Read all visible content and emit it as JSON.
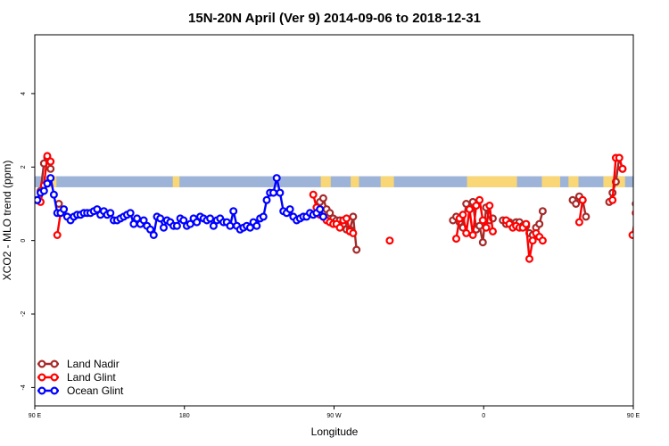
{
  "chart_data": {
    "type": "line",
    "title": "15N-20N April (Ver 9)   2014-09-06 to 2018-12-31",
    "xlabel": "Longitude",
    "ylabel": "XCO2 - MLO trend (ppm)",
    "xlim": [
      90,
      450
    ],
    "ylim": [
      -4.5,
      5.6
    ],
    "x_ticks": [
      {
        "value": 90,
        "label": "90 E"
      },
      {
        "value": 180,
        "label": "180"
      },
      {
        "value": 270,
        "label": "90 W"
      },
      {
        "value": 360,
        "label": "0"
      },
      {
        "value": 450,
        "label": "90 E"
      },
      {
        "value": 540,
        "label": "180"
      }
    ],
    "y_ticks": [
      {
        "value": -4,
        "label": "-4"
      },
      {
        "value": -2,
        "label": "-2"
      },
      {
        "value": 0,
        "label": "0"
      },
      {
        "value": 2,
        "label": "2"
      },
      {
        "value": 4,
        "label": "4"
      }
    ],
    "land_band": {
      "ymin": 1.45,
      "ymax": 1.75,
      "ocean_color": "#9db4d8",
      "land_color": "#f9d776"
    },
    "legend_position": "bottom-left",
    "series": [
      {
        "name": "Land Nadir",
        "color": "#a52a2a",
        "segments": [
          [
            [
              91.5,
              1.1
            ],
            [
              93.5,
              1.35
            ],
            [
              95.5,
              2.1
            ],
            [
              97.5,
              2.25
            ],
            [
              99.5,
              1.95
            ]
          ],
          [
            [
              104.5,
              1.0
            ]
          ],
          [
            [
              261.5,
              1.05
            ],
            [
              263.5,
              1.15
            ],
            [
              265.5,
              0.85
            ],
            [
              267.5,
              0.75
            ],
            [
              269.5,
              0.6
            ],
            [
              271.5,
              0.55
            ],
            [
              273.5,
              0.55
            ],
            [
              275.5,
              0.45
            ],
            [
              277.5,
              0.3
            ],
            [
              279.5,
              0.3
            ],
            [
              281.5,
              0.65
            ],
            [
              283.5,
              -0.25
            ]
          ],
          [
            [
              341.5,
              0.55
            ],
            [
              343.5,
              0.65
            ],
            [
              345.5,
              0.5
            ],
            [
              347.5,
              0.35
            ],
            [
              349.5,
              1.0
            ],
            [
              351.5,
              0.85
            ],
            [
              353.5,
              1.05
            ],
            [
              355.5,
              0.3
            ],
            [
              357.5,
              0.4
            ],
            [
              359.5,
              -0.05
            ],
            [
              361.5,
              0.9
            ],
            [
              363.5,
              0.55
            ],
            [
              365.5,
              0.6
            ]
          ],
          [
            [
              371.5,
              0.55
            ],
            [
              373.5,
              0.45
            ],
            [
              375.5,
              0.5
            ],
            [
              377.5,
              0.45
            ],
            [
              379.5,
              0.5
            ],
            [
              381.5,
              0.5
            ],
            [
              383.5,
              0.4
            ],
            [
              385.5,
              0.4
            ],
            [
              387.5,
              0.2
            ],
            [
              389.5,
              0.15
            ],
            [
              391.5,
              0.35
            ],
            [
              393.5,
              0.45
            ],
            [
              395.5,
              0.8
            ]
          ],
          [
            [
              413.5,
              1.1
            ],
            [
              415.5,
              1.0
            ],
            [
              417.5,
              1.2
            ],
            [
              419.5,
              1.1
            ],
            [
              421.5,
              0.65
            ]
          ],
          [
            [
              435.5,
              1.05
            ],
            [
              437.5,
              1.3
            ],
            [
              439.5,
              1.6
            ],
            [
              441.5,
              2.25
            ],
            [
              443.5,
              1.95
            ]
          ],
          [
            [
              451.5,
              1.0
            ]
          ]
        ]
      },
      {
        "name": "Land Glint",
        "color": "#ff0000",
        "segments": [
          [
            [
              93.5,
              1.05
            ],
            [
              95.5,
              1.5
            ],
            [
              97.5,
              2.3
            ],
            [
              99.5,
              2.15
            ]
          ],
          [
            [
              103.5,
              0.15
            ],
            [
              105.5,
              0.75
            ]
          ],
          [
            [
              257.5,
              1.25
            ],
            [
              259.5,
              0.9
            ],
            [
              261.5,
              0.7
            ],
            [
              263.5,
              0.65
            ],
            [
              265.5,
              0.55
            ],
            [
              267.5,
              0.5
            ],
            [
              269.5,
              0.45
            ],
            [
              271.5,
              0.45
            ],
            [
              273.5,
              0.35
            ],
            [
              275.5,
              0.55
            ],
            [
              277.5,
              0.6
            ],
            [
              279.5,
              0.25
            ],
            [
              281.5,
              0.2
            ]
          ],
          [
            [
              303.5,
              0.0
            ]
          ],
          [
            [
              343.5,
              0.05
            ],
            [
              345.5,
              0.6
            ],
            [
              347.5,
              0.7
            ],
            [
              349.5,
              0.2
            ],
            [
              351.5,
              0.85
            ],
            [
              353.5,
              0.15
            ],
            [
              355.5,
              0.95
            ],
            [
              357.5,
              1.1
            ],
            [
              359.5,
              0.55
            ],
            [
              361.5,
              0.35
            ],
            [
              363.5,
              0.95
            ],
            [
              365.5,
              0.25
            ]
          ],
          [
            [
              373.5,
              0.55
            ],
            [
              375.5,
              0.45
            ],
            [
              377.5,
              0.35
            ],
            [
              379.5,
              0.4
            ],
            [
              381.5,
              0.35
            ],
            [
              383.5,
              0.35
            ],
            [
              385.5,
              0.45
            ],
            [
              387.5,
              -0.5
            ],
            [
              389.5,
              0.0
            ],
            [
              391.5,
              0.2
            ],
            [
              393.5,
              0.1
            ],
            [
              395.5,
              0.0
            ]
          ],
          [
            [
              417.5,
              0.5
            ],
            [
              419.5,
              1.1
            ]
          ],
          [
            [
              437.5,
              1.1
            ],
            [
              439.5,
              2.25
            ],
            [
              441.5,
              2.25
            ],
            [
              443.5,
              1.95
            ]
          ],
          [
            [
              449.5,
              0.15
            ],
            [
              451.5,
              0.75
            ]
          ]
        ]
      },
      {
        "name": "Ocean Glint",
        "color": "#0000ff",
        "segments": [
          [
            [
              91.5,
              1.1
            ],
            [
              93.5,
              1.3
            ],
            [
              95.5,
              1.35
            ],
            [
              97.5,
              1.55
            ],
            [
              99.5,
              1.7
            ],
            [
              101.5,
              1.25
            ],
            [
              103.5,
              0.75
            ],
            [
              105.5,
              0.75
            ],
            [
              107.5,
              0.85
            ],
            [
              109.5,
              0.65
            ],
            [
              111.5,
              0.55
            ],
            [
              113.5,
              0.65
            ],
            [
              115.5,
              0.7
            ],
            [
              117.5,
              0.7
            ],
            [
              119.5,
              0.75
            ],
            [
              121.5,
              0.75
            ],
            [
              123.5,
              0.75
            ],
            [
              125.5,
              0.8
            ],
            [
              127.5,
              0.85
            ],
            [
              129.5,
              0.7
            ],
            [
              131.5,
              0.8
            ],
            [
              133.5,
              0.7
            ],
            [
              135.5,
              0.75
            ],
            [
              137.5,
              0.55
            ],
            [
              139.5,
              0.55
            ],
            [
              141.5,
              0.6
            ],
            [
              143.5,
              0.65
            ],
            [
              145.5,
              0.7
            ],
            [
              147.5,
              0.75
            ],
            [
              149.5,
              0.45
            ],
            [
              151.5,
              0.6
            ],
            [
              153.5,
              0.45
            ],
            [
              155.5,
              0.55
            ],
            [
              157.5,
              0.4
            ],
            [
              159.5,
              0.3
            ],
            [
              161.5,
              0.15
            ],
            [
              163.5,
              0.65
            ],
            [
              165.5,
              0.6
            ],
            [
              167.5,
              0.35
            ],
            [
              169.5,
              0.55
            ],
            [
              171.5,
              0.5
            ],
            [
              173.5,
              0.4
            ],
            [
              175.5,
              0.4
            ],
            [
              177.5,
              0.6
            ],
            [
              179.5,
              0.55
            ],
            [
              181.5,
              0.4
            ],
            [
              183.5,
              0.45
            ],
            [
              185.5,
              0.6
            ],
            [
              187.5,
              0.5
            ],
            [
              189.5,
              0.65
            ],
            [
              191.5,
              0.6
            ],
            [
              193.5,
              0.55
            ],
            [
              195.5,
              0.6
            ],
            [
              197.5,
              0.4
            ],
            [
              199.5,
              0.55
            ],
            [
              201.5,
              0.6
            ],
            [
              203.5,
              0.5
            ],
            [
              205.5,
              0.5
            ],
            [
              207.5,
              0.4
            ],
            [
              209.5,
              0.8
            ],
            [
              211.5,
              0.4
            ],
            [
              213.5,
              0.3
            ],
            [
              215.5,
              0.35
            ],
            [
              217.5,
              0.4
            ],
            [
              219.5,
              0.35
            ],
            [
              221.5,
              0.5
            ],
            [
              223.5,
              0.4
            ],
            [
              225.5,
              0.6
            ],
            [
              227.5,
              0.65
            ],
            [
              229.5,
              1.1
            ],
            [
              231.5,
              1.3
            ],
            [
              233.5,
              1.3
            ],
            [
              235.5,
              1.7
            ],
            [
              237.5,
              1.3
            ],
            [
              239.5,
              0.8
            ],
            [
              241.5,
              0.75
            ],
            [
              243.5,
              0.85
            ],
            [
              245.5,
              0.65
            ],
            [
              247.5,
              0.55
            ],
            [
              249.5,
              0.6
            ],
            [
              251.5,
              0.65
            ],
            [
              253.5,
              0.65
            ],
            [
              255.5,
              0.75
            ],
            [
              257.5,
              0.7
            ],
            [
              259.5,
              0.75
            ],
            [
              261.5,
              0.85
            ],
            [
              263.5,
              0.65
            ]
          ]
        ]
      }
    ]
  }
}
